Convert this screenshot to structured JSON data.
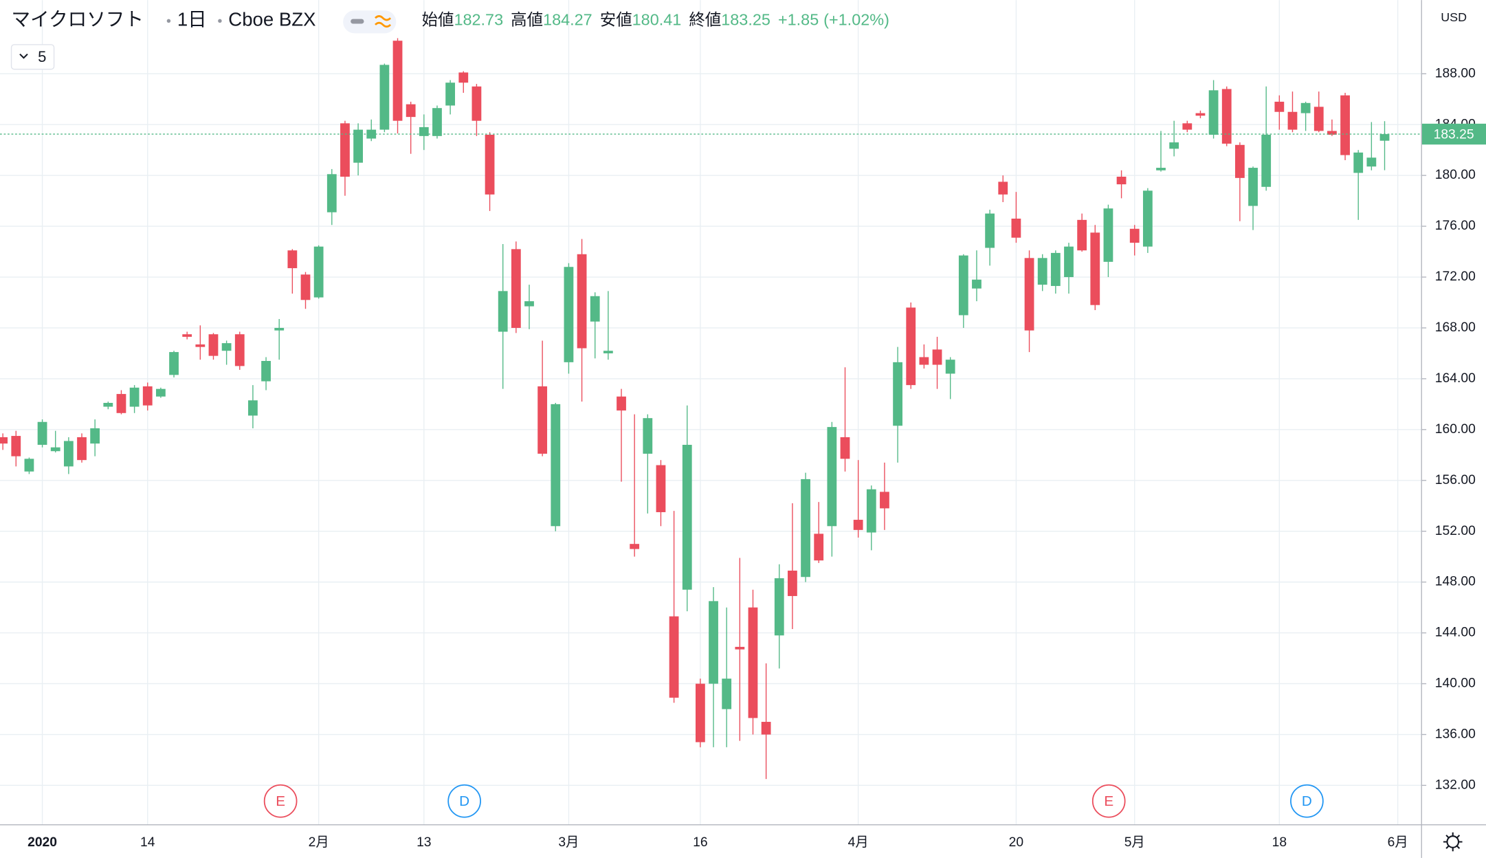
{
  "chart_data": {
    "type": "candlestick",
    "header": {
      "symbol": "マイクロソフト",
      "interval": "1日",
      "exchange": "Cboe BZX",
      "legend": [
        {
          "label": "始値",
          "value": "182.73"
        },
        {
          "label": "高値",
          "value": "184.27"
        },
        {
          "label": "安値",
          "value": "180.41"
        },
        {
          "label": "終値",
          "value": "183.25"
        }
      ],
      "change": "+1.85",
      "change_percent": "(+1.02%)"
    },
    "indicator": "5",
    "currency": "USD",
    "last_price": {
      "value": 183.25,
      "label": "183.25"
    },
    "up_color": "#53b987",
    "down_color": "#eb4d5c",
    "events": [
      {
        "label": "E",
        "color": "#eb4d5c"
      },
      {
        "label": "D",
        "color": "#2196f3"
      },
      {
        "label": "E",
        "color": "#eb4d5c"
      },
      {
        "label": "D",
        "color": "#2196f3"
      }
    ],
    "categories": [
      null,
      null,
      null,
      "2020",
      null,
      null,
      null,
      null,
      null,
      null,
      null,
      "14",
      null,
      null,
      null,
      null,
      null,
      null,
      null,
      null,
      null,
      null,
      null,
      null,
      "2月",
      null,
      null,
      null,
      null,
      null,
      null,
      null,
      "13",
      null,
      null,
      null,
      null,
      null,
      null,
      null,
      null,
      null,
      null,
      "3月",
      null,
      null,
      null,
      null,
      null,
      null,
      null,
      null,
      null,
      "16",
      null,
      null,
      null,
      null,
      null,
      null,
      null,
      null,
      null,
      null,
      null,
      "4月",
      null,
      null,
      null,
      null,
      null,
      null,
      null,
      null,
      null,
      null,
      null,
      "20",
      null,
      null,
      null,
      null,
      null,
      null,
      null,
      null,
      "5月",
      null,
      null,
      null,
      null,
      null,
      null,
      null,
      null,
      null,
      null,
      "18",
      null,
      null,
      null,
      null,
      null,
      null,
      null,
      null,
      "6月"
    ],
    "open": [
      159.4,
      159.5,
      156.7,
      158.8,
      158.3,
      157.1,
      159.4,
      158.9,
      161.8,
      162.8,
      161.8,
      163.4,
      162.6,
      164.3,
      167.5,
      166.7,
      167.5,
      166.2,
      167.5,
      161.1,
      163.8,
      167.8,
      174.1,
      172.2,
      170.4,
      177.1,
      184.1,
      181.0,
      182.9,
      183.6,
      190.6,
      185.6,
      183.1,
      183.1,
      185.5,
      188.1,
      187.0,
      183.2,
      167.7,
      174.2,
      169.7,
      163.4,
      152.4,
      165.3,
      173.8,
      168.5,
      166.0,
      162.6,
      151.0,
      158.1,
      157.2,
      145.3,
      147.4,
      140.0,
      140.0,
      138.0,
      142.9,
      146.0,
      137.0,
      143.8,
      148.9,
      148.4,
      151.8,
      152.4,
      159.4,
      152.9,
      151.9,
      155.1,
      160.3,
      169.6,
      165.7,
      166.3,
      164.4,
      169.0,
      171.1,
      174.3,
      179.5,
      176.6,
      173.5,
      171.4,
      171.3,
      172.0,
      176.5,
      175.5,
      173.2,
      179.9,
      175.8,
      174.4,
      180.4,
      182.1,
      184.1,
      184.9,
      183.2,
      186.8,
      182.4,
      177.6,
      179.1,
      185.8,
      185.0,
      184.9,
      185.4,
      183.5,
      186.3,
      180.2,
      180.7,
      182.73,
      null
    ],
    "high": [
      159.7,
      159.9,
      157.8,
      160.8,
      159.9,
      159.4,
      159.7,
      160.8,
      162.2,
      163.1,
      163.5,
      163.7,
      163.3,
      166.2,
      167.7,
      168.2,
      167.6,
      167.0,
      167.7,
      163.5,
      165.7,
      168.7,
      174.2,
      172.4,
      174.5,
      180.5,
      184.3,
      184.1,
      184.4,
      188.8,
      190.8,
      185.8,
      184.8,
      185.5,
      187.5,
      188.2,
      187.2,
      183.4,
      174.6,
      174.8,
      171.4,
      167.0,
      162.1,
      173.1,
      175.0,
      170.8,
      170.9,
      163.2,
      161.2,
      161.2,
      157.6,
      153.6,
      161.9,
      140.4,
      147.6,
      146.0,
      149.9,
      147.4,
      141.6,
      149.4,
      154.2,
      156.6,
      154.3,
      160.6,
      164.9,
      157.6,
      155.6,
      157.4,
      166.5,
      170.0,
      166.7,
      167.3,
      165.7,
      173.8,
      174.1,
      177.3,
      180.0,
      178.7,
      174.1,
      173.8,
      174.1,
      174.7,
      177.0,
      176.1,
      177.7,
      180.4,
      176.1,
      179.0,
      183.5,
      184.3,
      184.3,
      185.1,
      187.5,
      187.0,
      182.6,
      180.7,
      187.0,
      186.3,
      186.6,
      185.8,
      186.6,
      184.4,
      186.5,
      182.0,
      184.2,
      184.27,
      null
    ],
    "low": [
      158.4,
      157.1,
      156.5,
      158.6,
      158.2,
      156.5,
      157.4,
      157.9,
      161.6,
      161.2,
      161.3,
      161.5,
      162.5,
      164.1,
      167.1,
      165.5,
      165.5,
      165.1,
      164.7,
      160.1,
      163.1,
      165.5,
      170.7,
      169.5,
      170.3,
      176.1,
      178.4,
      180.0,
      182.7,
      183.4,
      183.3,
      181.7,
      182.0,
      182.9,
      184.8,
      186.5,
      183.1,
      177.2,
      163.2,
      167.6,
      167.9,
      157.9,
      152.0,
      164.4,
      162.2,
      165.6,
      165.5,
      155.9,
      150.0,
      153.4,
      152.4,
      138.5,
      145.7,
      135.0,
      135.0,
      135.0,
      135.5,
      136.0,
      132.5,
      141.2,
      144.3,
      148.0,
      149.5,
      150.0,
      156.7,
      151.5,
      150.5,
      152.1,
      157.4,
      163.2,
      164.8,
      163.2,
      162.4,
      168.0,
      170.1,
      172.9,
      177.9,
      174.7,
      166.1,
      170.9,
      170.7,
      170.7,
      174.0,
      169.4,
      172.0,
      178.2,
      173.7,
      173.9,
      180.3,
      181.5,
      183.4,
      184.5,
      182.9,
      182.3,
      176.4,
      175.7,
      178.8,
      183.6,
      183.4,
      183.5,
      183.4,
      183.1,
      181.2,
      176.5,
      180.4,
      180.41,
      null
    ],
    "close": [
      158.9,
      157.9,
      157.7,
      160.6,
      158.6,
      159.1,
      157.6,
      160.1,
      162.1,
      161.3,
      163.3,
      161.9,
      163.2,
      166.1,
      167.3,
      166.5,
      165.8,
      166.8,
      165.0,
      162.3,
      165.4,
      168.0,
      172.7,
      170.2,
      174.4,
      180.1,
      179.9,
      183.6,
      183.6,
      188.7,
      184.3,
      184.6,
      183.8,
      185.3,
      187.3,
      187.3,
      184.3,
      178.5,
      170.9,
      168.0,
      170.1,
      158.1,
      162.0,
      172.8,
      166.4,
      170.5,
      166.2,
      161.5,
      150.6,
      160.9,
      153.5,
      138.9,
      158.8,
      135.4,
      146.5,
      140.4,
      142.7,
      137.3,
      136.0,
      148.3,
      146.9,
      156.1,
      149.7,
      160.2,
      157.7,
      152.1,
      155.3,
      153.8,
      165.3,
      163.5,
      165.1,
      165.1,
      165.5,
      173.7,
      171.8,
      177.0,
      178.5,
      175.1,
      167.8,
      173.5,
      173.9,
      174.4,
      174.1,
      169.8,
      177.4,
      179.3,
      174.7,
      178.8,
      180.6,
      182.6,
      183.6,
      184.7,
      186.7,
      182.5,
      179.8,
      180.6,
      183.2,
      185.0,
      183.6,
      185.7,
      183.5,
      183.2,
      181.6,
      181.8,
      181.4,
      183.25,
      null
    ],
    "ylim": [
      128.9,
      193.8
    ],
    "yticks": [
      {
        "value": 132,
        "label": "132.00"
      },
      {
        "value": 136,
        "label": "136.00"
      },
      {
        "value": 140,
        "label": "140.00"
      },
      {
        "value": 144,
        "label": "144.00"
      },
      {
        "value": 148,
        "label": "148.00"
      },
      {
        "value": 152,
        "label": "152.00"
      },
      {
        "value": 156,
        "label": "156.00"
      },
      {
        "value": 160,
        "label": "160.00"
      },
      {
        "value": 164,
        "label": "164.00"
      },
      {
        "value": 168,
        "label": "168.00"
      },
      {
        "value": 172,
        "label": "172.00"
      },
      {
        "value": 176,
        "label": "176.00"
      },
      {
        "value": 180,
        "label": "180.00"
      },
      {
        "value": 184,
        "label": "184.00"
      },
      {
        "value": 188,
        "label": "188.00"
      }
    ],
    "grid": true
  }
}
